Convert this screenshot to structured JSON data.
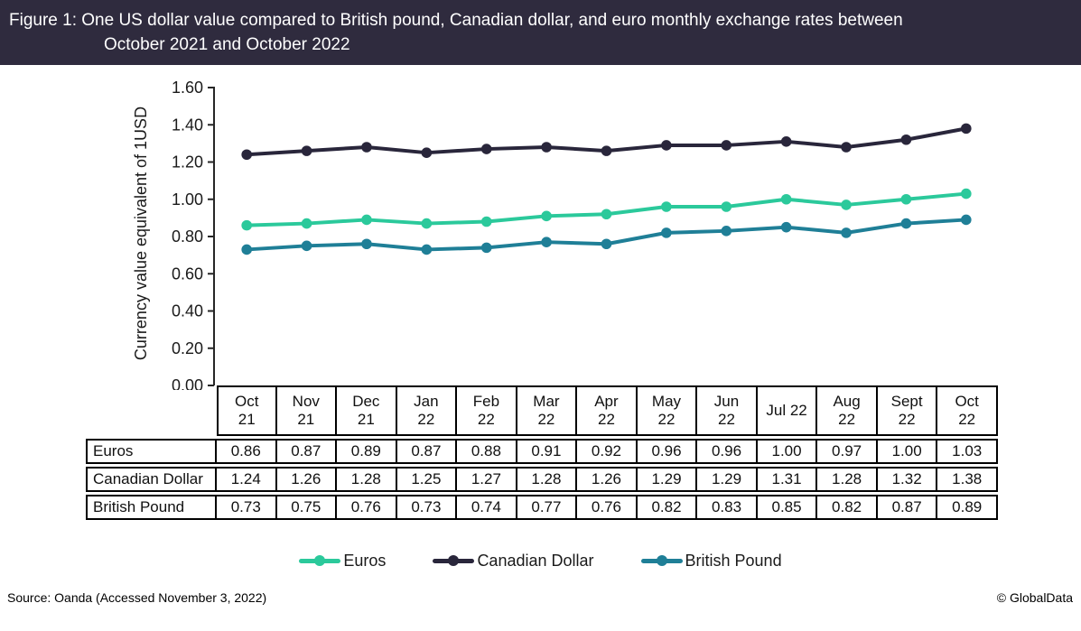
{
  "figure": {
    "title_line1": "Figure 1: One US dollar value compared to British pound, Canadian dollar, and euro monthly exchange rates between",
    "title_line2": "October 2021 and October 2022",
    "banner_color": "#2F2B3E"
  },
  "chart_data": {
    "type": "line",
    "title": "Figure 1: One US dollar value compared to British pound, Canadian dollar, and euro monthly exchange rates between October 2021 and October 2022",
    "xlabel": "",
    "ylabel": "Currency value equivalent of 1USD",
    "ylim": [
      0,
      1.6
    ],
    "ytick_step": 0.2,
    "grid": false,
    "legend_position": "bottom",
    "axis_color": "#262626",
    "categories": [
      "Oct 21",
      "Nov 21",
      "Dec 21",
      "Jan 22",
      "Feb 22",
      "Mar 22",
      "Apr 22",
      "May 22",
      "Jun 22",
      "Jul 22",
      "Aug 22",
      "Sept 22",
      "Oct 22"
    ],
    "series": [
      {
        "name": "Euros",
        "color": "#2BC99B",
        "values": [
          0.86,
          0.87,
          0.89,
          0.87,
          0.88,
          0.91,
          0.92,
          0.96,
          0.96,
          1.0,
          0.97,
          1.0,
          1.03
        ]
      },
      {
        "name": "Canadian Dollar",
        "color": "#29263B",
        "values": [
          1.24,
          1.26,
          1.28,
          1.25,
          1.27,
          1.28,
          1.26,
          1.29,
          1.29,
          1.31,
          1.28,
          1.32,
          1.38
        ]
      },
      {
        "name": "British Pound",
        "color": "#1F7F97",
        "values": [
          0.73,
          0.75,
          0.76,
          0.73,
          0.74,
          0.77,
          0.76,
          0.82,
          0.83,
          0.85,
          0.82,
          0.87,
          0.89
        ]
      }
    ]
  },
  "table": {
    "header_lines": [
      [
        "Oct",
        "21"
      ],
      [
        "Nov",
        "21"
      ],
      [
        "Dec",
        "21"
      ],
      [
        "Jan",
        "22"
      ],
      [
        "Feb",
        "22"
      ],
      [
        "Mar",
        "22"
      ],
      [
        "Apr",
        "22"
      ],
      [
        "May",
        "22"
      ],
      [
        "Jun",
        "22"
      ],
      [
        "Jul 22"
      ],
      [
        "Aug",
        "22"
      ],
      [
        "Sept",
        "22"
      ],
      [
        "Oct",
        "22"
      ]
    ],
    "row_labels": [
      "Euros",
      "Canadian Dollar",
      "British Pound"
    ]
  },
  "footer": {
    "source": "Source: Oanda (Accessed November 3, 2022)",
    "brand": "© GlobalData"
  }
}
